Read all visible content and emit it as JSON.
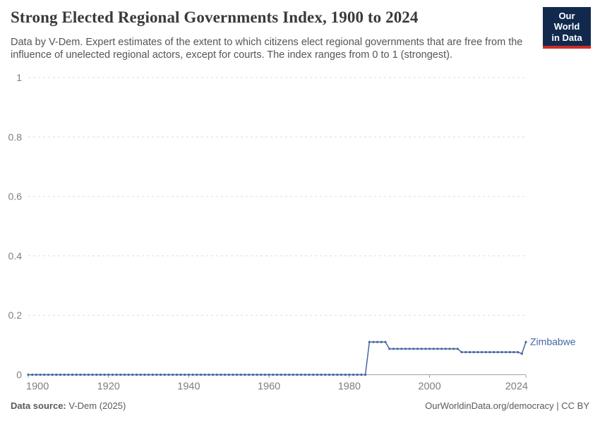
{
  "header": {
    "title": "Strong Elected Regional Governments Index, 1900 to 2024",
    "logo": {
      "line1": "Our World",
      "line2": "in Data"
    }
  },
  "subtitle": "Data by V-Dem. Expert estimates of the extent to which citizens elect regional governments that are free from the influence of unelected regional actors, except for courts. The index ranges from 0 to 1 (strongest).",
  "footer": {
    "source_label": "Data source:",
    "source_value": " V-Dem (2025)",
    "right_text": "OurWorldinData.org/democracy | CC BY"
  },
  "colors": {
    "line": "#4667a3",
    "grid": "#dcdcdc",
    "axis": "#a5a5a5",
    "tick_text": "#7f7f7f",
    "title_text": "#3a3a3a",
    "logo_bg": "#12294e",
    "logo_stripe": "#cf2e27"
  },
  "chart_data": {
    "type": "line",
    "title": "Strong Elected Regional Governments Index, 1900 to 2024",
    "xlabel": "",
    "ylabel": "",
    "x_range": [
      1900,
      2024
    ],
    "y_range": [
      0,
      1
    ],
    "x_ticks": [
      1900,
      1920,
      1940,
      1960,
      1980,
      2000,
      2024
    ],
    "y_ticks": [
      0,
      0.2,
      0.4,
      0.6,
      0.8,
      1
    ],
    "grid": "horizontal-dashed",
    "legend_position": "end-of-line-label",
    "series": [
      {
        "name": "Zimbabwe",
        "color": "#4667a3",
        "segments": [
          {
            "from": 1900,
            "to": 1984,
            "value": 0
          },
          {
            "from": 1985,
            "to": 1989,
            "value": 0.11
          },
          {
            "from": 1990,
            "to": 2007,
            "value": 0.087
          },
          {
            "from": 2008,
            "to": 2022,
            "value": 0.076
          },
          {
            "from": 2023,
            "to": 2023,
            "value": 0.071
          },
          {
            "from": 2024,
            "to": 2024,
            "value": 0.11
          }
        ]
      }
    ]
  }
}
